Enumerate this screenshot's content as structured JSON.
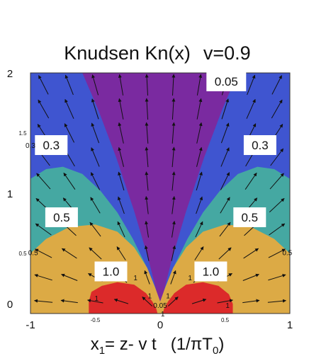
{
  "chart_data": {
    "type": "contour",
    "title_parts": {
      "main": "Knudsen Kn(x)",
      "param": "v=0.9"
    },
    "xlabel_parts": {
      "pre": "x",
      "sub": "1",
      "mid": "= z- v t",
      "unit_pre": "(1/",
      "pi": "π",
      "unit_T": "T",
      "unit_sub": "0",
      "unit_post": ")"
    },
    "xlim": [
      -1,
      1
    ],
    "ylim": [
      0,
      2
    ],
    "x_major_ticks": [
      {
        "value": -1,
        "label": "-1"
      },
      {
        "value": 0,
        "label": "0"
      },
      {
        "value": 1,
        "label": "1"
      }
    ],
    "x_minor_ticks": [
      {
        "value": -0.5,
        "label": "-0.5"
      },
      {
        "value": 0.5,
        "label": "0.5"
      }
    ],
    "y_major_ticks": [
      {
        "value": 0,
        "label": "0"
      },
      {
        "value": 1,
        "label": "1"
      },
      {
        "value": 2,
        "label": "2"
      }
    ],
    "y_minor_ticks": [
      {
        "value": 0.5,
        "label": "0.5"
      },
      {
        "value": 1.5,
        "label": "1.5"
      }
    ],
    "contour_levels": [
      "0.05",
      "0.3",
      "0.5",
      "1.0"
    ],
    "region_colors": {
      "below_0.05": "#7a2aa0",
      "0.05_to_0.3": "#3f55d0",
      "0.3_to_0.5": "#45a8a2",
      "0.5_to_1.0": "#dcaa45",
      "above_1.0": "#dc2a2a"
    },
    "level_labels": [
      {
        "text": "0.05",
        "x": 0.51,
        "y": 1.93
      },
      {
        "text": "0.3",
        "x": -0.84,
        "y": 1.4
      },
      {
        "text": "0.3",
        "x": 0.77,
        "y": 1.4
      },
      {
        "text": "0.5",
        "x": -0.76,
        "y": 0.8
      },
      {
        "text": "0.5",
        "x": 0.69,
        "y": 0.8
      },
      {
        "text": "1.0",
        "x": -0.38,
        "y": 0.35
      },
      {
        "text": "1.0",
        "x": 0.39,
        "y": 0.35
      }
    ],
    "edge_labels": [
      {
        "text": "0.3",
        "x": -1.0,
        "y": 1.4
      },
      {
        "text": "0.5",
        "x": -0.98,
        "y": 0.51
      },
      {
        "text": "0.5",
        "x": 0.98,
        "y": 0.51
      },
      {
        "text": "1",
        "x": -0.19,
        "y": 0.3
      },
      {
        "text": "1",
        "x": 0.23,
        "y": 0.3
      },
      {
        "text": "1",
        "x": -0.49,
        "y": 0.13
      },
      {
        "text": "1",
        "x": 0.52,
        "y": 0.07
      },
      {
        "text": "1",
        "x": -0.08,
        "y": 0.15
      },
      {
        "text": "1",
        "x": 0.06,
        "y": 0.15
      },
      {
        "text": "0.05",
        "x": 0.0,
        "y": 0.07
      },
      {
        "text": "1",
        "x": 0.02,
        "y": 0.0
      }
    ],
    "vector_field": "flow velocity arrows radiating outward from the origin"
  }
}
